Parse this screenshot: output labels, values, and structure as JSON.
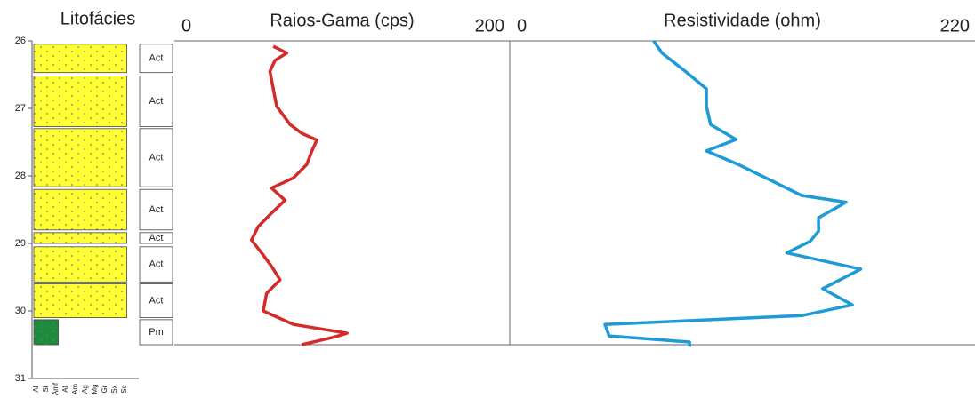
{
  "chart_data": {
    "type": "well-log",
    "lithology_title": "Litofácies",
    "ylim": [
      26,
      31
    ],
    "yticks": [
      26,
      27,
      28,
      29,
      30,
      31
    ],
    "grain_sizes": [
      "Al",
      "Si",
      "Amf",
      "Af",
      "Am",
      "Ag",
      "Mg",
      "Gr",
      "Sx",
      "Sc"
    ],
    "facies": [
      {
        "label": "Act",
        "top": 26.05,
        "base": 26.47,
        "grain": 9,
        "color": "#ffff33"
      },
      {
        "label": "Act",
        "top": 26.52,
        "base": 27.27,
        "grain": 9,
        "color": "#ffff33"
      },
      {
        "label": "Act",
        "top": 27.3,
        "base": 28.16,
        "grain": 9,
        "color": "#ffff33"
      },
      {
        "label": "Act",
        "top": 28.2,
        "base": 28.8,
        "grain": 9,
        "color": "#ffff33"
      },
      {
        "label": "Act",
        "top": 28.84,
        "base": 29.0,
        "grain": 9,
        "color": "#ffff33"
      },
      {
        "label": "Act",
        "top": 29.05,
        "base": 29.57,
        "grain": 9,
        "color": "#ffff33"
      },
      {
        "label": "Act",
        "top": 29.6,
        "base": 30.1,
        "grain": 9,
        "color": "#ffff33"
      },
      {
        "label": "Pm",
        "top": 30.13,
        "base": 30.5,
        "grain": 2,
        "color": "#1e8a3c"
      }
    ],
    "tracks": [
      {
        "title": "Raios-Gama (cps)",
        "xlim": [
          0,
          200
        ],
        "xticks": [
          0,
          200
        ],
        "color": "#d42a2a",
        "depth": [
          26.08,
          26.18,
          26.29,
          26.45,
          26.71,
          26.97,
          27.24,
          27.37,
          27.47,
          27.63,
          27.83,
          28.03,
          28.18,
          28.36,
          28.55,
          28.75,
          28.95,
          29.14,
          29.34,
          29.54,
          29.74,
          30.0,
          30.2,
          30.33,
          30.39,
          30.5
        ],
        "values": [
          59,
          67,
          60,
          57,
          59,
          61,
          69,
          76,
          85,
          82,
          79,
          71,
          58,
          66,
          58,
          50,
          46,
          52,
          58,
          63,
          55,
          53,
          71,
          103,
          95,
          76
        ]
      },
      {
        "title": "Resistividade (ohm)",
        "xlim": [
          0,
          220
        ],
        "xticks": [
          0,
          220
        ],
        "color": "#1e9ad6",
        "depth": [
          26.0,
          26.18,
          26.45,
          26.71,
          26.97,
          27.24,
          27.46,
          27.63,
          27.83,
          28.09,
          28.29,
          28.39,
          28.62,
          28.82,
          28.97,
          29.14,
          29.38,
          29.67,
          29.91,
          30.07,
          30.2,
          30.37,
          30.46,
          30.53
        ],
        "values": [
          68,
          72,
          83,
          93,
          93,
          95,
          107,
          93,
          108,
          125,
          138,
          159,
          146,
          146,
          142,
          131,
          166,
          148,
          162,
          138,
          45,
          47,
          85,
          85
        ]
      }
    ]
  }
}
